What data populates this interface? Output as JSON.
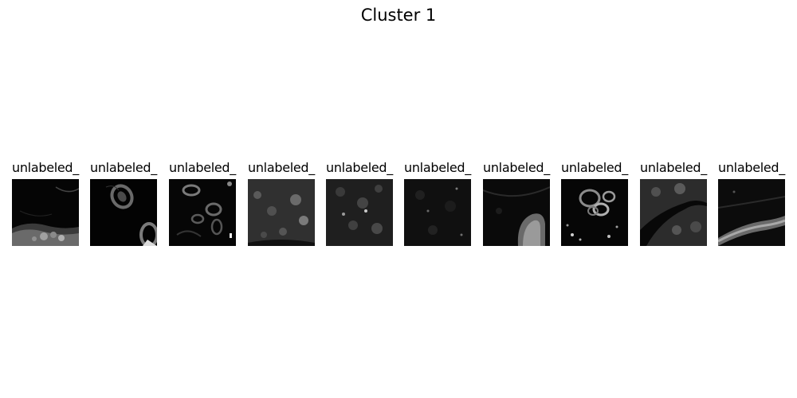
{
  "title": "Cluster 1",
  "panels": [
    {
      "label": "unlabeled_"
    },
    {
      "label": "unlabeled_"
    },
    {
      "label": "unlabeled_"
    },
    {
      "label": "unlabeled_"
    },
    {
      "label": "unlabeled_"
    },
    {
      "label": "unlabeled_"
    },
    {
      "label": "unlabeled_"
    },
    {
      "label": "unlabeled_"
    },
    {
      "label": "unlabeled_"
    },
    {
      "label": "unlabeled_"
    }
  ]
}
